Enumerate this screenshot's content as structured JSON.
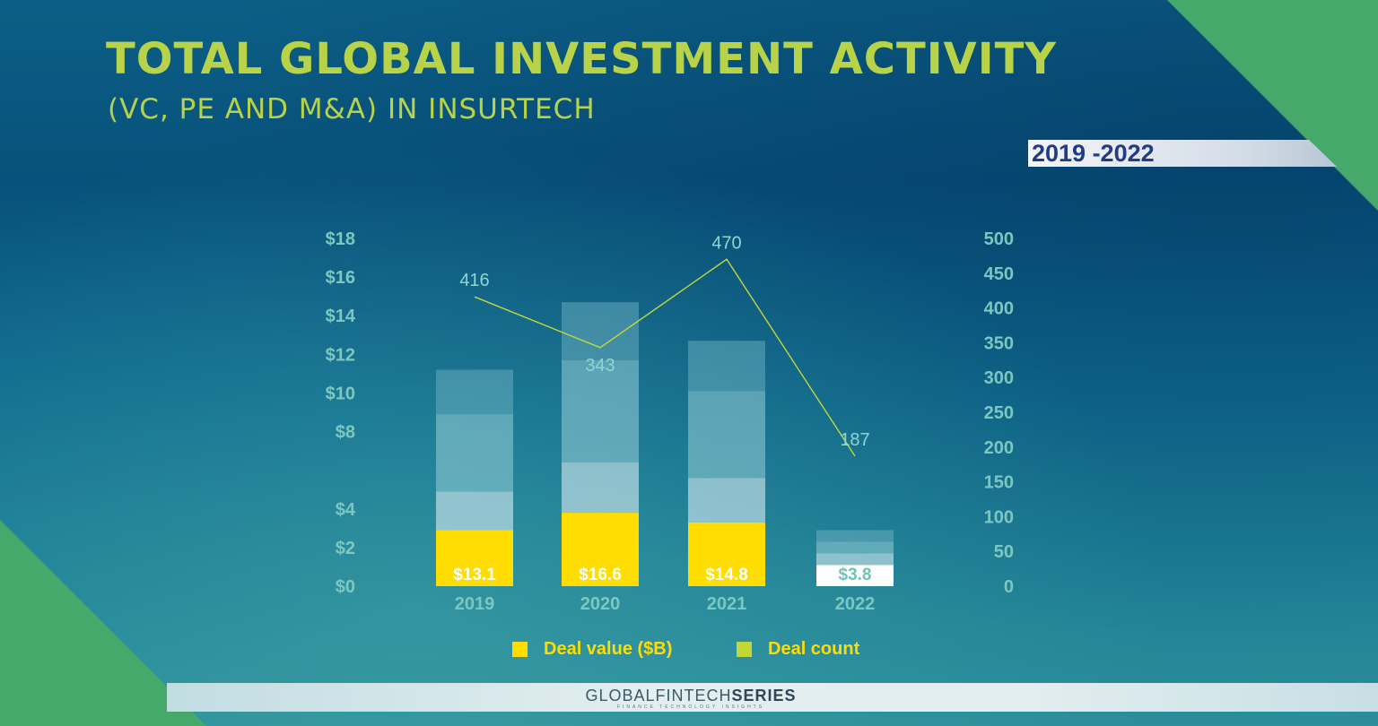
{
  "header": {
    "title": "TOTAL GLOBAL INVESTMENT ACTIVITY",
    "subtitle": "(VC, PE AND M&A) IN INSURTECH",
    "period": "2019 -2022"
  },
  "colors": {
    "title": "#b8d34a",
    "deal_value": "#ffdd00",
    "deal_count": "#c2d83a",
    "axis_text": "#7cc8c0",
    "accent_green": "#44a96b"
  },
  "chart_data": {
    "type": "bar",
    "categories": [
      "2019",
      "2020",
      "2021",
      "2022"
    ],
    "series": [
      {
        "name": "Deal value ($B)",
        "type": "bar",
        "axis": "left",
        "values": [
          13.1,
          16.6,
          14.8,
          3.8
        ],
        "value_labels": [
          "$13.1",
          "$16.6",
          "$14.8",
          "$3.8"
        ],
        "segments": [
          [
            2.9,
            2.0,
            4.0,
            2.3
          ],
          [
            3.8,
            2.6,
            5.3,
            3.0
          ],
          [
            3.3,
            2.3,
            4.5,
            2.6
          ],
          [
            1.1,
            0.6,
            0.6,
            0.6
          ]
        ]
      },
      {
        "name": "Deal count",
        "type": "line",
        "axis": "right",
        "values": [
          416,
          343,
          470,
          187
        ],
        "value_labels": [
          "416",
          "343",
          "470",
          "187"
        ]
      }
    ],
    "y_left": {
      "range": [
        0,
        18
      ],
      "ticks": [
        0,
        2,
        4,
        8,
        10,
        12,
        14,
        16,
        18
      ],
      "tick_labels": [
        "$0",
        "$2",
        "$4",
        "$8",
        "$10",
        "$12",
        "$14",
        "$16",
        "$18"
      ]
    },
    "y_right": {
      "range": [
        0,
        500
      ],
      "ticks": [
        0,
        50,
        100,
        150,
        200,
        250,
        300,
        350,
        400,
        450,
        500
      ],
      "tick_labels": [
        "0",
        "50",
        "100",
        "150",
        "200",
        "250",
        "300",
        "350",
        "400",
        "450",
        "500"
      ]
    },
    "legend": [
      "Deal value ($B)",
      "Deal count"
    ],
    "legend_position": "bottom",
    "grid": false
  },
  "footer": {
    "brand_part1": "GLOBALFINTECH",
    "brand_part2": "SERIES",
    "tagline": "FINANCE TECHNOLOGY INSIGHTS"
  }
}
